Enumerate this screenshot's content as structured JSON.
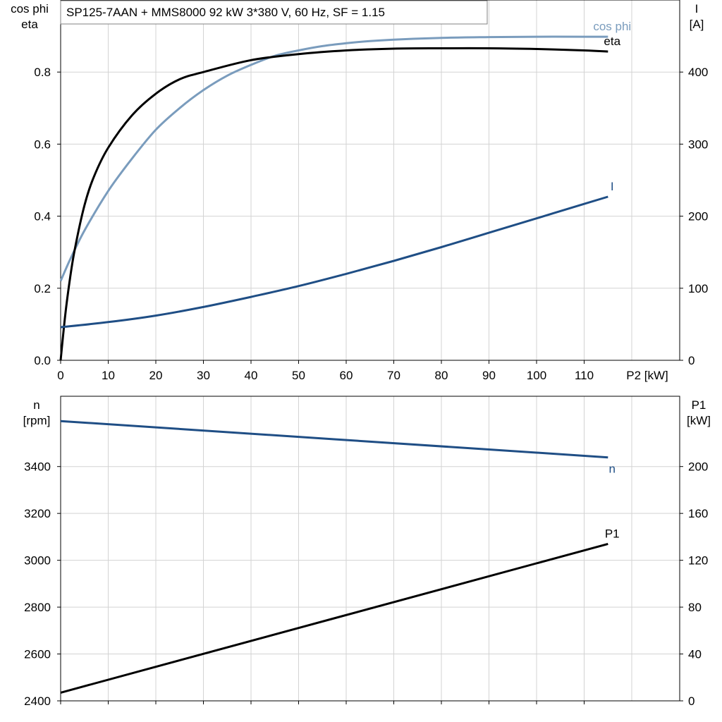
{
  "chart_data": [
    {
      "type": "line",
      "title": "SP125-7AAN + MMS8000   92 kW   3*380 V, 60 Hz, SF = 1.15",
      "xlabel": "P2 [kW]",
      "x_ticks": [
        0,
        10,
        20,
        30,
        40,
        50,
        60,
        70,
        80,
        90,
        100,
        110
      ],
      "xlim": [
        0,
        130
      ],
      "y_left": {
        "label_line1": "cos phi",
        "label_line2": "eta",
        "lim": [
          0,
          1.0
        ],
        "ticks": [
          0.0,
          0.2,
          0.4,
          0.6,
          0.8
        ],
        "tick_labels": [
          "0.0",
          "0.2",
          "0.4",
          "0.6",
          "0.8"
        ]
      },
      "y_right": {
        "label_line1": "I",
        "label_line2": "[A]",
        "lim": [
          0,
          500
        ],
        "ticks": [
          0,
          100,
          200,
          300,
          400
        ]
      },
      "grid": true,
      "series": [
        {
          "name": "cos phi",
          "axis": "left",
          "color": "#7a9cbd",
          "x": [
            0,
            2,
            5,
            10,
            15,
            20,
            25,
            30,
            35,
            40,
            45,
            50,
            55,
            60,
            65,
            70,
            80,
            90,
            100,
            110,
            115
          ],
          "values": [
            0.22,
            0.28,
            0.36,
            0.47,
            0.56,
            0.64,
            0.7,
            0.75,
            0.79,
            0.82,
            0.845,
            0.86,
            0.872,
            0.88,
            0.886,
            0.89,
            0.895,
            0.897,
            0.898,
            0.898,
            0.898
          ]
        },
        {
          "name": "eta",
          "axis": "left",
          "color": "#000000",
          "x": [
            0,
            1,
            2,
            3,
            5,
            7,
            10,
            15,
            20,
            25,
            30,
            40,
            50,
            60,
            70,
            80,
            90,
            100,
            110,
            115
          ],
          "values": [
            0.0,
            0.13,
            0.23,
            0.31,
            0.43,
            0.51,
            0.59,
            0.68,
            0.74,
            0.78,
            0.8,
            0.833,
            0.85,
            0.86,
            0.865,
            0.866,
            0.866,
            0.864,
            0.86,
            0.857
          ]
        },
        {
          "name": "I",
          "axis": "right",
          "color": "#1f4e85",
          "x": [
            0,
            10,
            20,
            30,
            40,
            50,
            60,
            70,
            80,
            90,
            100,
            110,
            115
          ],
          "values": [
            46,
            53,
            62,
            74,
            88,
            103,
            120,
            138,
            157,
            177,
            197,
            217,
            227
          ]
        }
      ]
    },
    {
      "type": "line",
      "xlim": [
        0,
        130
      ],
      "x_ticks": [
        0,
        10,
        20,
        30,
        40,
        50,
        60,
        70,
        80,
        90,
        100,
        110
      ],
      "y_left": {
        "label_line1": "n",
        "label_line2": "[rpm]",
        "lim": [
          2400,
          3700
        ],
        "ticks": [
          2400,
          2600,
          2800,
          3000,
          3200,
          3400
        ]
      },
      "y_right": {
        "label_line1": "P1",
        "label_line2": "[kW]",
        "lim": [
          0,
          260
        ],
        "ticks": [
          0,
          40,
          80,
          120,
          160,
          200
        ]
      },
      "grid": true,
      "series": [
        {
          "name": "n",
          "axis": "left",
          "color": "#1f4e85",
          "x": [
            0,
            115
          ],
          "values": [
            3594,
            3439
          ]
        },
        {
          "name": "P1",
          "axis": "right",
          "color": "#000000",
          "x": [
            0,
            115
          ],
          "values": [
            7,
            134
          ]
        }
      ]
    }
  ]
}
